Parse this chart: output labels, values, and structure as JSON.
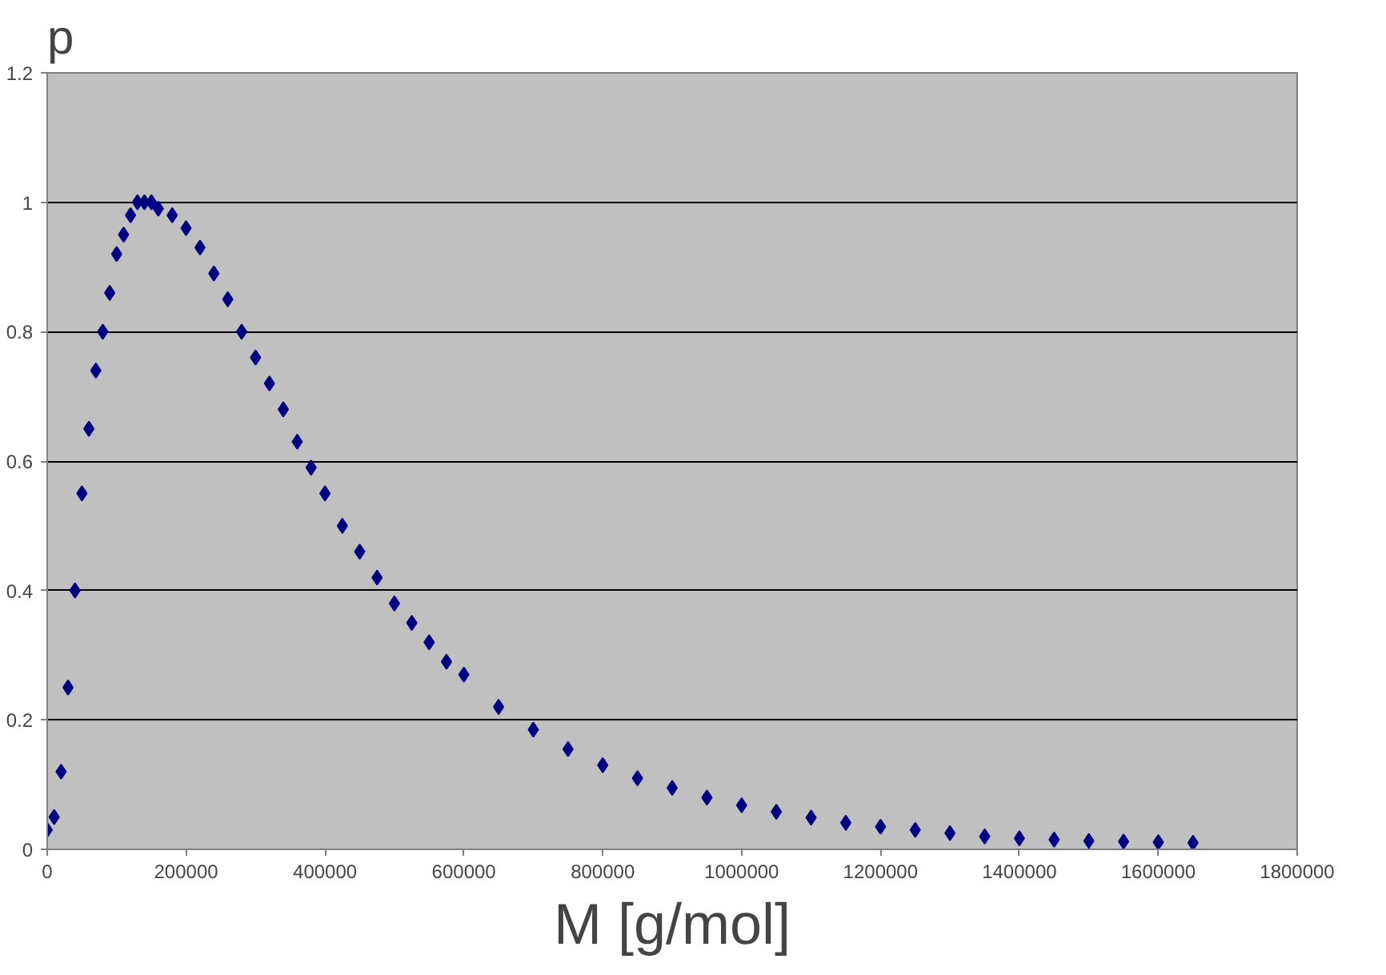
{
  "chart_data": {
    "type": "scatter",
    "xlabel": "M [g/mol]",
    "ylabel": "p",
    "x": [
      0,
      10000,
      20000,
      30000,
      40000,
      50000,
      60000,
      70000,
      80000,
      90000,
      100000,
      110000,
      120000,
      130000,
      140000,
      150000,
      160000,
      180000,
      200000,
      220000,
      240000,
      260000,
      280000,
      300000,
      320000,
      340000,
      360000,
      380000,
      400000,
      425000,
      450000,
      475000,
      500000,
      525000,
      550000,
      575000,
      600000,
      650000,
      700000,
      750000,
      800000,
      850000,
      900000,
      950000,
      1000000,
      1050000,
      1100000,
      1150000,
      1200000,
      1250000,
      1300000,
      1350000,
      1400000,
      1450000,
      1500000,
      1550000,
      1600000,
      1650000
    ],
    "series": [
      {
        "color": "#000080",
        "values": [
          0.03,
          0.05,
          0.12,
          0.25,
          0.4,
          0.55,
          0.65,
          0.74,
          0.8,
          0.86,
          0.92,
          0.95,
          0.98,
          1.0,
          1.0,
          1.0,
          0.99,
          0.98,
          0.96,
          0.93,
          0.89,
          0.85,
          0.8,
          0.76,
          0.72,
          0.68,
          0.63,
          0.59,
          0.55,
          0.5,
          0.46,
          0.42,
          0.38,
          0.35,
          0.32,
          0.29,
          0.27,
          0.22,
          0.185,
          0.155,
          0.13,
          0.11,
          0.095,
          0.08,
          0.068,
          0.058,
          0.049,
          0.041,
          0.035,
          0.03,
          0.025,
          0.02,
          0.017,
          0.015,
          0.013,
          0.012,
          0.011,
          0.01
        ]
      }
    ],
    "marker": "diamond",
    "grid": "y",
    "xlim": [
      0,
      1800000
    ],
    "xticks": [
      0,
      200000,
      400000,
      600000,
      800000,
      1000000,
      1200000,
      1400000,
      1600000,
      1800000
    ],
    "ylim": [
      0,
      1.2
    ],
    "yticks": [
      0,
      0.2,
      0.4,
      0.6,
      0.8,
      1,
      1.2
    ]
  }
}
